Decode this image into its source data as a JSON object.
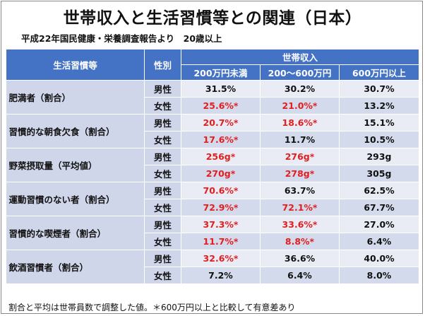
{
  "title": "世帯収入と生活習慣等との関連（日本）",
  "subtitle": "平成22年国民健康・栄養調査報告より　20歳以上",
  "header": {
    "item_label": "生活習慣等",
    "sex_label": "性別",
    "income_label": "世帯収入",
    "income_groups": [
      "200万円未満",
      "200〜600万円",
      "600万円以上"
    ]
  },
  "rows": [
    {
      "item": "肥満者（割合）",
      "sex": "男性",
      "values": [
        "31.5%",
        "30.2%",
        "30.7%"
      ],
      "significant": [
        false,
        false,
        false
      ]
    },
    {
      "item": "",
      "sex": "女性",
      "values": [
        "25.6%*",
        "21.0%*",
        "13.2%"
      ],
      "significant": [
        true,
        true,
        false
      ]
    },
    {
      "item": "習慣的な朝食欠食（割合）",
      "sex": "男性",
      "values": [
        "20.7%*",
        "18.6%*",
        "15.1%"
      ],
      "significant": [
        true,
        true,
        false
      ]
    },
    {
      "item": "",
      "sex": "女性",
      "values": [
        "17.6%*",
        "11.7%",
        "10.5%"
      ],
      "significant": [
        true,
        false,
        false
      ]
    },
    {
      "item": "野菜摂取量（平均値）",
      "sex": "男性",
      "values": [
        "256g*",
        "276g*",
        "293g"
      ],
      "significant": [
        true,
        true,
        false
      ]
    },
    {
      "item": "",
      "sex": "女性",
      "values": [
        "270g*",
        "278g*",
        "305g"
      ],
      "significant": [
        true,
        true,
        false
      ]
    },
    {
      "item": "運動習慣のない者（割合）",
      "sex": "男性",
      "values": [
        "70.6%*",
        "63.7%",
        "62.5%"
      ],
      "significant": [
        true,
        false,
        false
      ]
    },
    {
      "item": "",
      "sex": "女性",
      "values": [
        "72.9%*",
        "72.1%*",
        "67.7%"
      ],
      "significant": [
        true,
        true,
        false
      ]
    },
    {
      "item": "習慣的な喫煙者（割合）",
      "sex": "男性",
      "values": [
        "37.3%*",
        "33.6%*",
        "27.0%"
      ],
      "significant": [
        true,
        true,
        false
      ]
    },
    {
      "item": "",
      "sex": "女性",
      "values": [
        "11.7%*",
        "8.8%*",
        "6.4%"
      ],
      "significant": [
        true,
        true,
        false
      ]
    },
    {
      "item": "飲酒習慣者（割合）",
      "sex": "男性",
      "values": [
        "32.6%*",
        "36.6%",
        "40.0%"
      ],
      "significant": [
        true,
        false,
        false
      ]
    },
    {
      "item": "",
      "sex": "女性",
      "values": [
        "7.2%",
        "6.4%",
        "8.0%"
      ],
      "significant": [
        false,
        false,
        false
      ]
    }
  ],
  "note": "割合と平均は世帯員数で調整した値。＊600万円以上と比較して有意差あり",
  "colors": {
    "header_bg": "#4472c4",
    "label_bg": "#cfd6ea",
    "row_light": "#e9ecf5",
    "row_dark": "#d3daec",
    "significant_text": "#e41e1e"
  }
}
